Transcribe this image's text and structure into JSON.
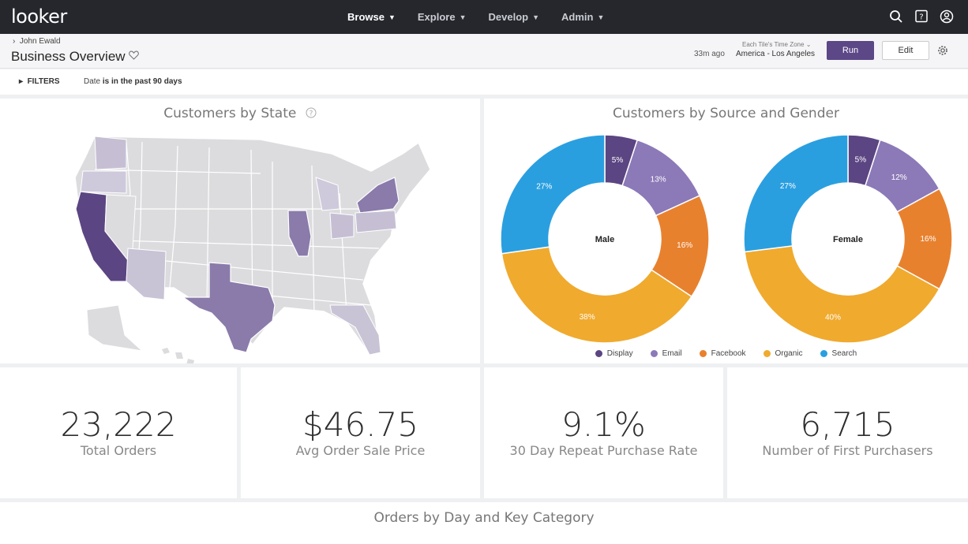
{
  "app": {
    "logo": "looker"
  },
  "nav": [
    {
      "label": "Browse",
      "active": true
    },
    {
      "label": "Explore",
      "active": false
    },
    {
      "label": "Develop",
      "active": false
    },
    {
      "label": "Admin",
      "active": false
    }
  ],
  "header": {
    "breadcrumb": "John Ewald",
    "title": "Business Overview",
    "tz_label": "Each Tile's Time Zone",
    "updated": "33m ago",
    "tz_value": "America - Los Angeles",
    "run_label": "Run",
    "edit_label": "Edit"
  },
  "filters": {
    "toggle_label": "FILTERS",
    "field": "Date",
    "condition": "is in the past 90 days"
  },
  "tiles": {
    "map_title": "Customers by State",
    "donut_title": "Customers by Source and Gender",
    "bottom_title": "Orders by Day and Key Category"
  },
  "kpis": [
    {
      "value": "23,222",
      "label": "Total Orders"
    },
    {
      "value": "$46.75",
      "label": "Avg Order Sale Price"
    },
    {
      "value": "9.1%",
      "label": "30 Day Repeat Purchase Rate"
    },
    {
      "value": "6,715",
      "label": "Number of First Purchasers"
    }
  ],
  "colors": {
    "Display": "#5b4582",
    "Email": "#8c79b8",
    "Facebook": "#e8812e",
    "Organic": "#f0aa2e",
    "Search": "#2a9fe0",
    "accent": "#5c4787"
  },
  "chart_data": {
    "type": "pie",
    "categories": [
      "Display",
      "Email",
      "Facebook",
      "Organic",
      "Search"
    ],
    "series": [
      {
        "name": "Male",
        "values": [
          5,
          13,
          16,
          38,
          27
        ]
      },
      {
        "name": "Female",
        "values": [
          5,
          12,
          16,
          40,
          27
        ]
      }
    ],
    "title": "Customers by Source and Gender",
    "legend": "bottom"
  }
}
